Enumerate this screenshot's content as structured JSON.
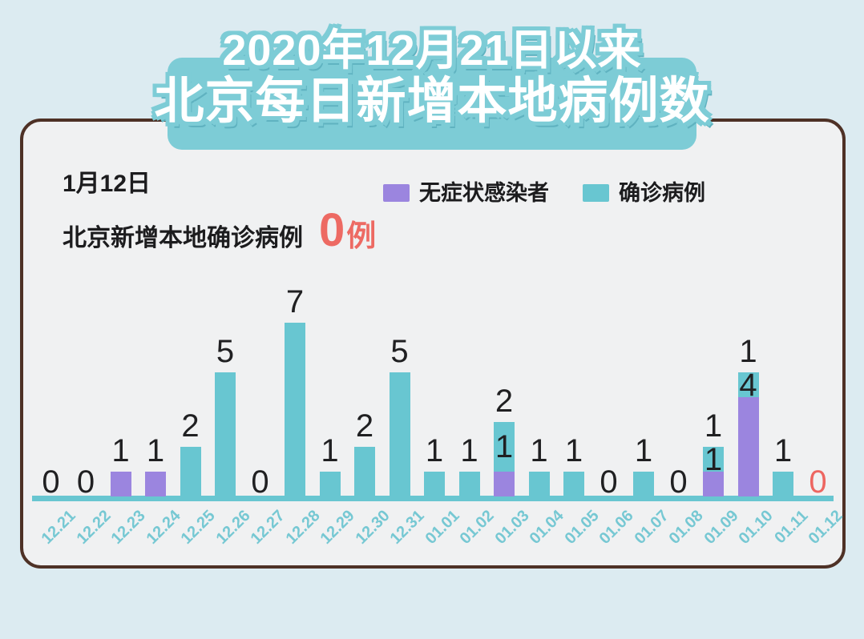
{
  "title": {
    "line1": "2020年12月21日以来",
    "line2": "北京每日新增本地病例数",
    "banner_color": "#7dccd6",
    "text_shadow_color": "#5fb2c0"
  },
  "info": {
    "date": "1月12日",
    "label": "北京新增本地确诊病例",
    "value": "0",
    "unit": "例",
    "value_color": "#ed6a63"
  },
  "legend": [
    {
      "label": "无症状感染者",
      "color": "#9b85df"
    },
    {
      "label": "确诊病例",
      "color": "#68c6d1"
    }
  ],
  "chart_data": {
    "type": "bar",
    "stacked": true,
    "title": "2020年12月21日以来 北京每日新增本地病例数",
    "categories": [
      "12.21",
      "12.22",
      "12.23",
      "12.24",
      "12.25",
      "12.26",
      "12.27",
      "12.28",
      "12.29",
      "12.30",
      "12.31",
      "01.01",
      "01.02",
      "01.03",
      "01.04",
      "01.05",
      "01.06",
      "01.07",
      "01.08",
      "01.09",
      "01.10",
      "01.11",
      "01.12"
    ],
    "series": [
      {
        "name": "无症状感染者",
        "color": "#9b85df",
        "values": [
          0,
          0,
          1,
          1,
          0,
          0,
          0,
          0,
          0,
          0,
          0,
          0,
          0,
          1,
          0,
          0,
          0,
          0,
          0,
          1,
          4,
          0,
          0
        ]
      },
      {
        "name": "确诊病例",
        "color": "#68c6d1",
        "values": [
          0,
          0,
          0,
          0,
          2,
          5,
          0,
          7,
          1,
          2,
          5,
          1,
          1,
          2,
          1,
          1,
          0,
          1,
          0,
          1,
          1,
          1,
          0
        ]
      }
    ],
    "ylim": [
      0,
      7
    ],
    "grid": false,
    "legend_position": "top",
    "bar_value_labels": true,
    "value_label_color": "#202022",
    "axis_color": "#68c6d1",
    "tick_label_color": "#76c8d3",
    "highlight": {
      "category": "01.12",
      "index": 22,
      "color": "#ed6661"
    }
  }
}
